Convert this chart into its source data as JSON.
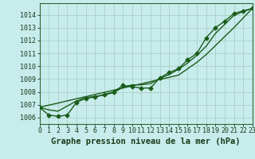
{
  "title": "Graphe pression niveau de la mer (hPa)",
  "background_color": "#c8ecec",
  "grid_color": "#b0d4c8",
  "line_color": "#1a5c1a",
  "x_data": [
    0,
    1,
    2,
    3,
    4,
    5,
    6,
    7,
    8,
    9,
    10,
    11,
    12,
    13,
    14,
    15,
    16,
    17,
    18,
    19,
    20,
    21,
    22,
    23
  ],
  "y_main": [
    1006.8,
    1006.2,
    1006.1,
    1006.2,
    1007.2,
    1007.5,
    1007.6,
    1007.8,
    1008.0,
    1008.5,
    1008.4,
    1008.3,
    1008.3,
    1009.1,
    1009.5,
    1009.8,
    1010.5,
    1011.0,
    1012.2,
    1013.0,
    1013.5,
    1014.1,
    1014.3,
    1014.5
  ],
  "y_smooth": [
    1006.8,
    1006.6,
    1006.5,
    1006.9,
    1007.3,
    1007.55,
    1007.65,
    1007.75,
    1007.95,
    1008.35,
    1008.55,
    1008.55,
    1008.65,
    1009.05,
    1009.35,
    1009.75,
    1010.25,
    1010.85,
    1011.55,
    1012.55,
    1013.25,
    1013.95,
    1014.25,
    1014.5
  ],
  "y_linear": [
    1006.8,
    1006.97,
    1007.13,
    1007.3,
    1007.47,
    1007.63,
    1007.8,
    1007.97,
    1008.13,
    1008.3,
    1008.47,
    1008.63,
    1008.8,
    1008.97,
    1009.13,
    1009.3,
    1009.8,
    1010.3,
    1010.9,
    1011.6,
    1012.3,
    1013.0,
    1013.75,
    1014.5
  ],
  "ylim": [
    1005.5,
    1014.9
  ],
  "xlim": [
    0,
    23
  ],
  "yticks": [
    1006,
    1007,
    1008,
    1009,
    1010,
    1011,
    1012,
    1013,
    1014
  ],
  "xticks": [
    0,
    1,
    2,
    3,
    4,
    5,
    6,
    7,
    8,
    9,
    10,
    11,
    12,
    13,
    14,
    15,
    16,
    17,
    18,
    19,
    20,
    21,
    22,
    23
  ],
  "marker": "D",
  "marker_size": 2.5,
  "line_width": 1.0,
  "title_fontsize": 7.5,
  "tick_fontsize": 6.0
}
